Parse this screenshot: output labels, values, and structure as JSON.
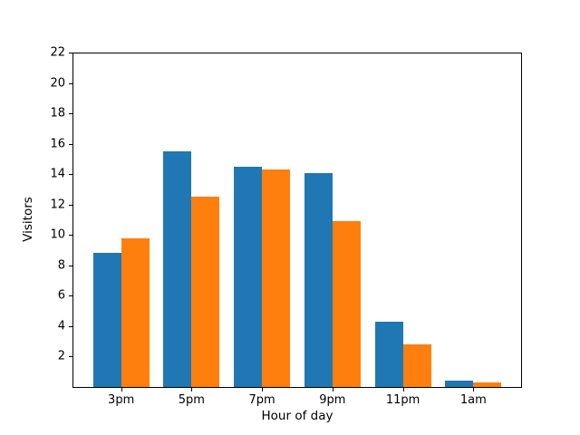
{
  "chart_data": {
    "type": "bar",
    "title": "",
    "xlabel": "Hour of day",
    "ylabel": "Visitors",
    "categories": [
      "3pm",
      "5pm",
      "7pm",
      "9pm",
      "11pm",
      "1am"
    ],
    "series": [
      {
        "name": "blue-series",
        "color": "#1f77b4",
        "values": [
          8.8,
          15.5,
          14.5,
          14.1,
          4.3,
          0.4
        ]
      },
      {
        "name": "orange-series",
        "color": "#ff7f0e",
        "values": [
          9.8,
          12.5,
          14.3,
          10.9,
          2.8,
          0.3
        ]
      }
    ],
    "ylim": [
      0,
      22
    ],
    "yticks": [
      2,
      4,
      6,
      8,
      10,
      12,
      14,
      16,
      18,
      20,
      22
    ],
    "bar_group_width": 0.8,
    "grid": false,
    "legend": false,
    "spine_color": "#000000",
    "background_color": "#ffffff"
  }
}
